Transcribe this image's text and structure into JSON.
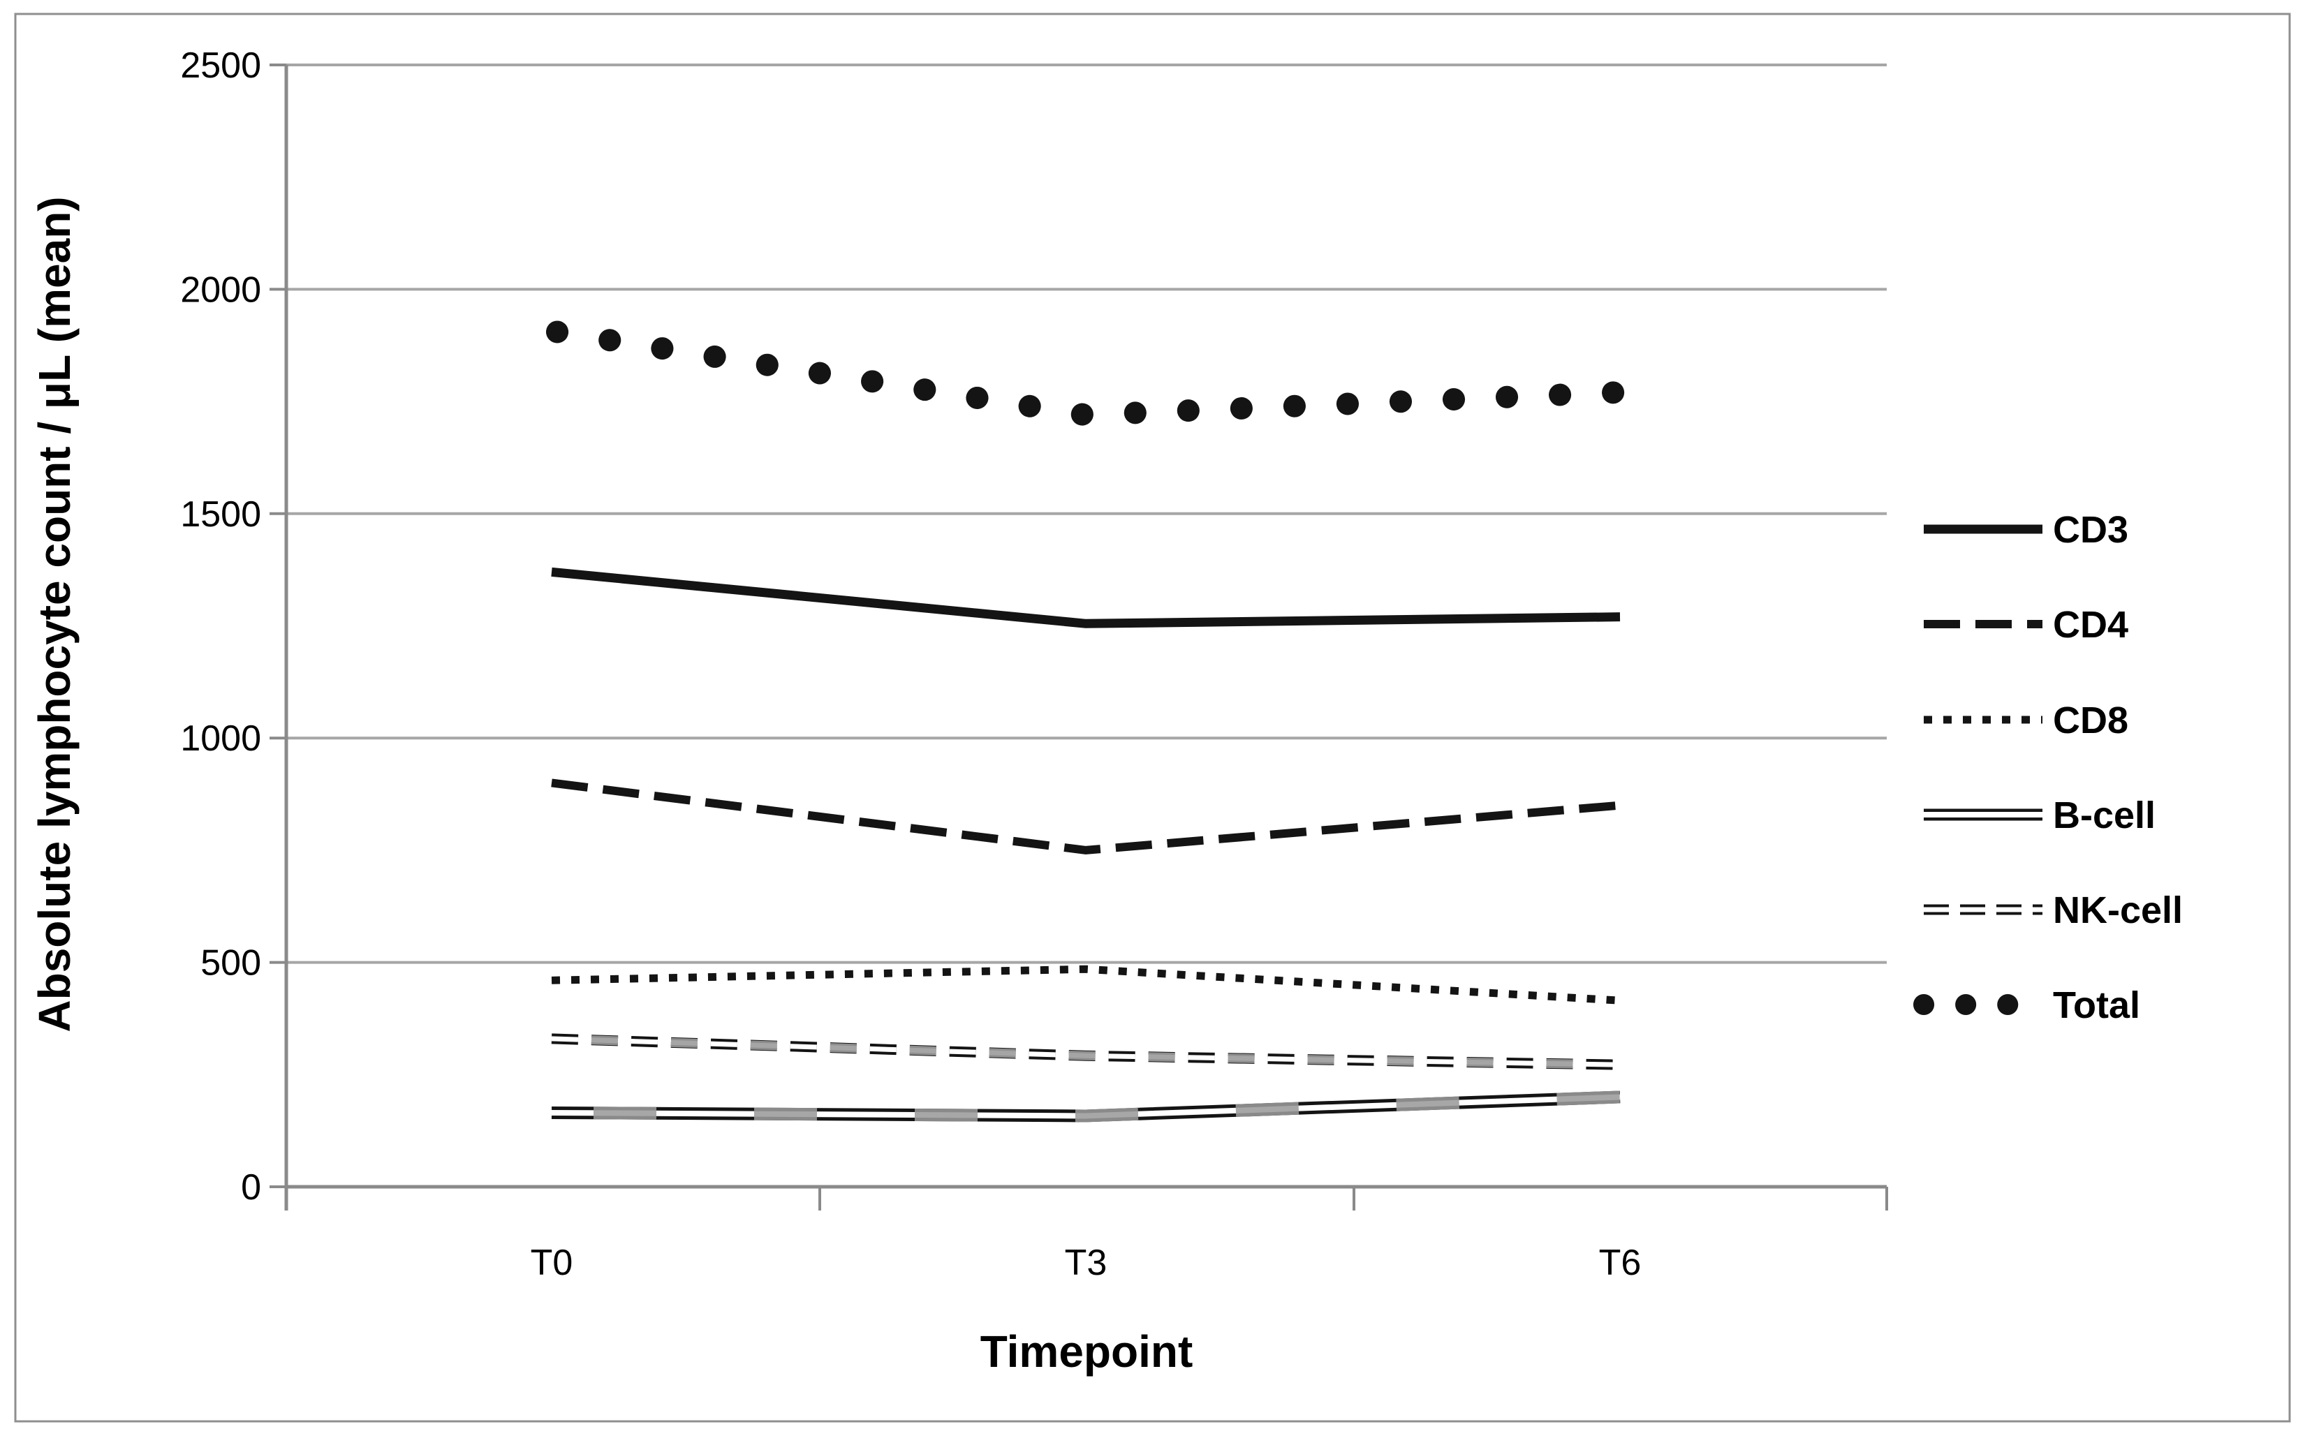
{
  "colors": {
    "ink": "#141414",
    "gridline": "#a6a6a6",
    "axis": "#8a8a8a",
    "border": "#8f8f8f",
    "artifact_gray": "#9b9b9b",
    "background": "#ffffff"
  },
  "chart_data": {
    "type": "line",
    "title": "",
    "xlabel": "Timepoint",
    "ylabel": "Absolute lymphocyte count / μL (mean)",
    "categories": [
      "T0",
      "T3",
      "T6"
    ],
    "ylim": [
      0,
      2500
    ],
    "yticks": [
      0,
      500,
      1000,
      1500,
      2000,
      2500
    ],
    "ytick_labels": [
      "0",
      "500",
      "1000",
      "1500",
      "2000",
      "2500"
    ],
    "grid": true,
    "legend_position": "right",
    "series": [
      {
        "name": "CD3",
        "values": [
          1370,
          1255,
          1270
        ],
        "line_style": "solid-thick"
      },
      {
        "name": "CD4",
        "values": [
          900,
          750,
          850
        ],
        "line_style": "dashed-thick"
      },
      {
        "name": "CD8",
        "values": [
          460,
          485,
          415
        ],
        "line_style": "dotted"
      },
      {
        "name": "B-cell",
        "values": [
          165,
          158,
          200
        ],
        "line_style": "double-line"
      },
      {
        "name": "NK-cell",
        "values": [
          330,
          292,
          272
        ],
        "line_style": "hollow-dash"
      },
      {
        "name": "Total",
        "values": [
          1905,
          1720,
          1770
        ],
        "line_style": "big-dots"
      }
    ],
    "legend_labels": [
      "CD3",
      "CD4",
      "CD8",
      "B-cell",
      "NK-cell",
      "Total"
    ]
  }
}
